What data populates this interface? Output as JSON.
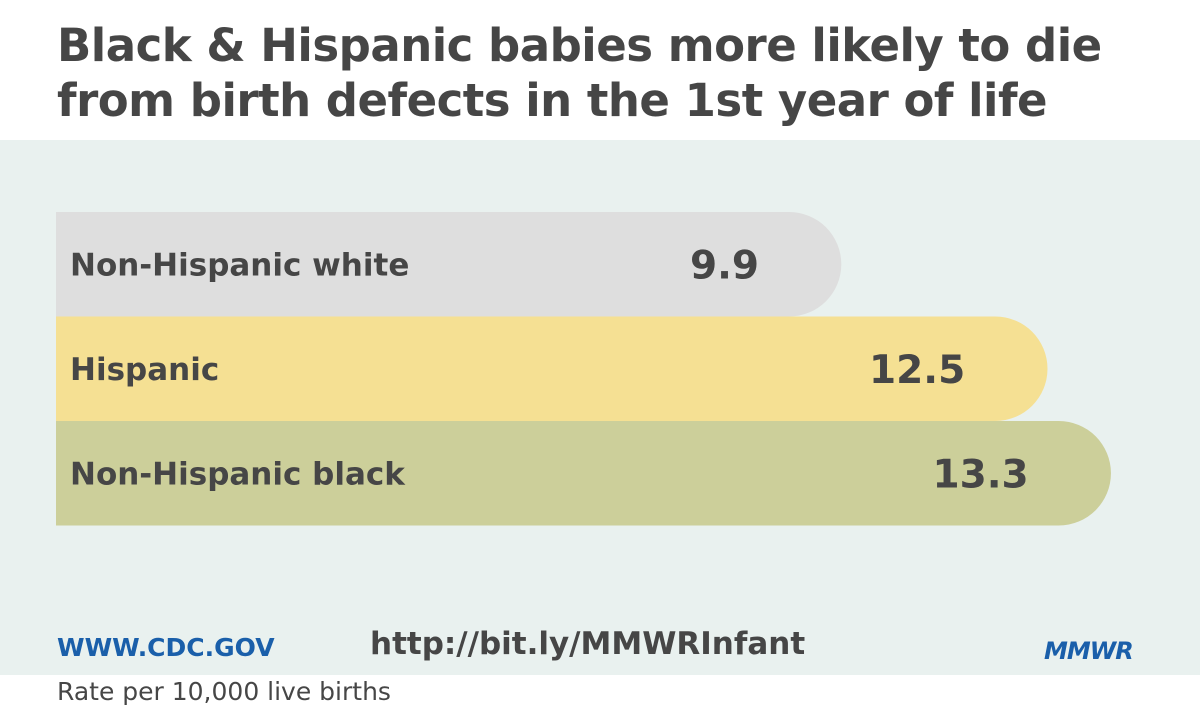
{
  "title": "Black & Hispanic babies more likely to die from birth defects in the 1st year of life",
  "chart_data": {
    "type": "bar",
    "orientation": "horizontal",
    "categories": [
      "Non-Hispanic white",
      "Hispanic",
      "Non-Hispanic black"
    ],
    "values": [
      9.9,
      12.5,
      13.3
    ],
    "value_labels": [
      "9.9",
      "12.5",
      "13.3"
    ],
    "colors": [
      "#dedede",
      "#f5e093",
      "#cccf9a"
    ],
    "unit_note": "Rate per 10,000 live births",
    "title": "Black & Hispanic babies more likely to die from birth defects in the 1st year of life",
    "xlabel": "",
    "ylabel": "",
    "grid": false,
    "legend": "none"
  },
  "footer": {
    "site": "WWW.CDC.GOV",
    "link": "http://bit.ly/MMWRInfant",
    "logo_text": "MMWR"
  },
  "colors": {
    "background_panel": "#e9f1ef",
    "text": "#464646",
    "brand_blue": "#1a5faa"
  }
}
